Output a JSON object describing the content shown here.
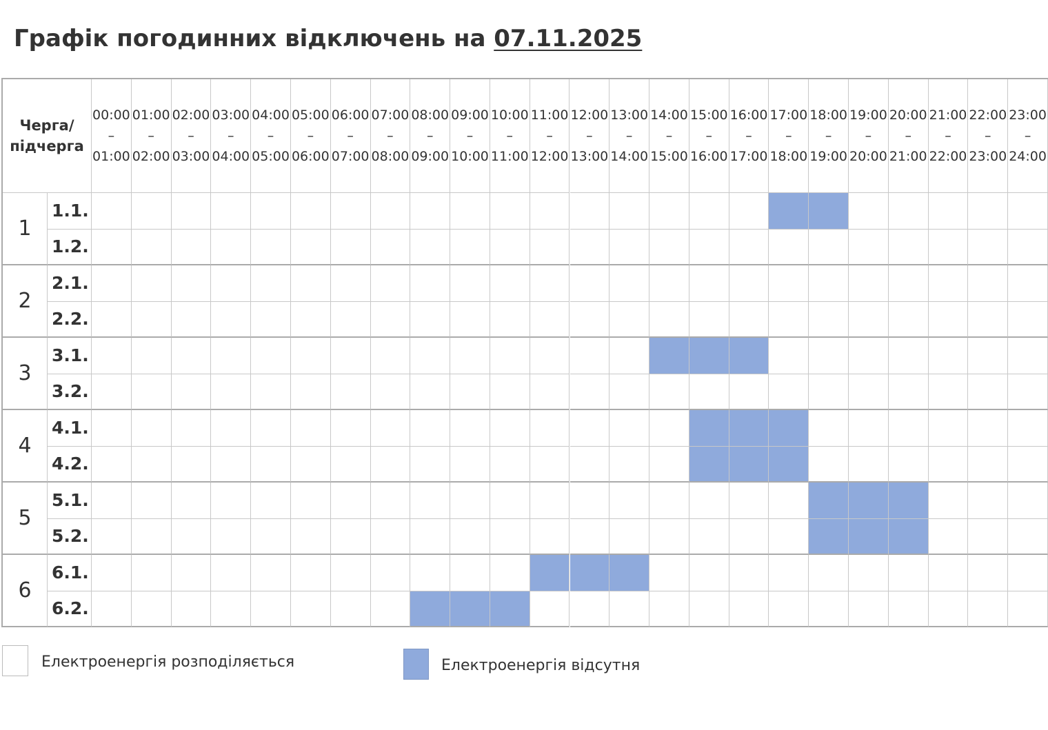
{
  "title": {
    "text": "Графік погодинних відключень на ",
    "date": "07.11.2025"
  },
  "table": {
    "corner": "Черга/ підчерга",
    "hours": [
      "00:00 – 01:00",
      "01:00 – 02:00",
      "02:00 – 03:00",
      "03:00 – 04:00",
      "04:00 – 05:00",
      "05:00 – 06:00",
      "06:00 – 07:00",
      "07:00 – 08:00",
      "08:00 – 09:00",
      "09:00 – 10:00",
      "10:00 – 11:00",
      "11:00 – 12:00",
      "12:00 – 13:00",
      "13:00 – 14:00",
      "14:00 – 15:00",
      "15:00 – 16:00",
      "16:00 – 17:00",
      "17:00 – 18:00",
      "18:00 – 19:00",
      "19:00 – 20:00",
      "20:00 – 21:00",
      "21:00 – 22:00",
      "22:00 – 23:00",
      "23:00 – 24:00"
    ],
    "groups": [
      {
        "label": "1",
        "subrows": [
          {
            "label": "1.1.",
            "off_hours": [
              17,
              18
            ]
          },
          {
            "label": "1.2.",
            "off_hours": []
          }
        ]
      },
      {
        "label": "2",
        "subrows": [
          {
            "label": "2.1.",
            "off_hours": []
          },
          {
            "label": "2.2.",
            "off_hours": []
          }
        ]
      },
      {
        "label": "3",
        "subrows": [
          {
            "label": "3.1.",
            "off_hours": [
              14,
              15,
              16
            ]
          },
          {
            "label": "3.2.",
            "off_hours": []
          }
        ]
      },
      {
        "label": "4",
        "subrows": [
          {
            "label": "4.1.",
            "off_hours": [
              15,
              16,
              17
            ]
          },
          {
            "label": "4.2.",
            "off_hours": [
              15,
              16,
              17
            ]
          }
        ]
      },
      {
        "label": "5",
        "subrows": [
          {
            "label": "5.1.",
            "off_hours": [
              18,
              19,
              20
            ]
          },
          {
            "label": "5.2.",
            "off_hours": [
              18,
              19,
              20
            ]
          }
        ]
      },
      {
        "label": "6",
        "subrows": [
          {
            "label": "6.1.",
            "off_hours": [
              11,
              12,
              13
            ]
          },
          {
            "label": "6.2.",
            "off_hours": [
              8,
              9,
              10
            ]
          }
        ]
      }
    ],
    "off_color": "#8faadc"
  },
  "legend": {
    "on": "Електроенергія розподіляється",
    "off": "Електроенергія відсутня"
  }
}
